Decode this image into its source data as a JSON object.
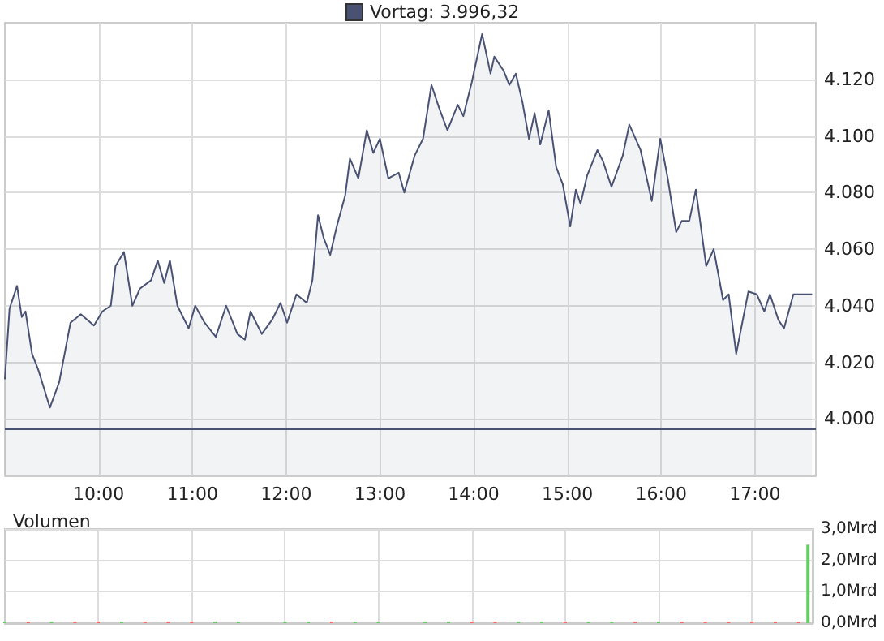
{
  "chart_data": [
    {
      "type": "area",
      "x": [
        9.0,
        9.05,
        9.13,
        9.18,
        9.22,
        9.29,
        9.36,
        9.48,
        9.58,
        9.7,
        9.81,
        9.95,
        10.04,
        10.13,
        10.18,
        10.27,
        10.36,
        10.44,
        10.56,
        10.63,
        10.7,
        10.76,
        10.84,
        10.96,
        11.03,
        11.13,
        11.25,
        11.36,
        11.48,
        11.56,
        11.62,
        11.74,
        11.85,
        11.94,
        12.01,
        12.11,
        12.22,
        12.28,
        12.34,
        12.4,
        12.47,
        12.54,
        12.63,
        12.68,
        12.77,
        12.86,
        12.93,
        13.0,
        13.09,
        13.2,
        13.26,
        13.37,
        13.46,
        13.55,
        13.63,
        13.72,
        13.83,
        13.89,
        13.98,
        14.09,
        14.18,
        14.22,
        14.32,
        14.38,
        14.45,
        14.52,
        14.59,
        14.65,
        14.71,
        14.8,
        14.88,
        14.95,
        15.03,
        15.09,
        15.14,
        15.21,
        15.32,
        15.38,
        15.47,
        15.59,
        15.66,
        15.78,
        15.9,
        15.99,
        16.07,
        16.16,
        16.22,
        16.3,
        16.37,
        16.48,
        16.56,
        16.66,
        16.72,
        16.8,
        16.93,
        17.02,
        17.1,
        17.16,
        17.25,
        17.31,
        17.41,
        17.61
      ],
      "series": [
        {
          "color": "#4a5274",
          "values": [
            4014,
            4039,
            4047,
            4036,
            4038,
            4023,
            4017,
            4004,
            4013,
            4034,
            4037,
            4033,
            4038,
            4040,
            4054,
            4059,
            4040,
            4046,
            4049,
            4056,
            4048,
            4056,
            4040,
            4032,
            4040,
            4034,
            4029,
            4040,
            4030,
            4028,
            4038,
            4030,
            4035,
            4041,
            4034,
            4044,
            4041,
            4049,
            4072,
            4064,
            4058,
            4068,
            4079,
            4092,
            4085,
            4102,
            4094,
            4099,
            4085,
            4087,
            4080,
            4093,
            4099,
            4118,
            4110,
            4102,
            4111,
            4107,
            4119,
            4136,
            4122,
            4128,
            4123,
            4118,
            4122,
            4112,
            4099,
            4108,
            4097,
            4109,
            4089,
            4083,
            4068,
            4081,
            4076,
            4086,
            4095,
            4091,
            4082,
            4093,
            4104,
            4095,
            4077,
            4099,
            4085,
            4066,
            4070,
            4070,
            4081,
            4054,
            4060,
            4042,
            4044,
            4023,
            4045,
            4044,
            4038,
            4044,
            4035,
            4032,
            4044,
            4044
          ]
        }
      ],
      "xlim": [
        9,
        17.65
      ],
      "xticks": [
        {
          "value": 10,
          "label": "10:00"
        },
        {
          "value": 11,
          "label": "11:00"
        },
        {
          "value": 12,
          "label": "12:00"
        },
        {
          "value": 13,
          "label": "13:00"
        },
        {
          "value": 14,
          "label": "14:00"
        },
        {
          "value": 15,
          "label": "15:00"
        },
        {
          "value": 16,
          "label": "16:00"
        },
        {
          "value": 17,
          "label": "17:00"
        }
      ],
      "ylim": [
        3980,
        4140
      ],
      "yticks": [
        {
          "value": 4000,
          "label": "4.000"
        },
        {
          "value": 4020,
          "label": "4.020"
        },
        {
          "value": 4040,
          "label": "4.040"
        },
        {
          "value": 4060,
          "label": "4.060"
        },
        {
          "value": 4080,
          "label": "4.080"
        },
        {
          "value": 4100,
          "label": "4.100"
        },
        {
          "value": 4120,
          "label": "4.120"
        }
      ],
      "ref_lines": [
        {
          "axis": "y",
          "value": 3996.32,
          "label": "Vortag: 3.996,32",
          "color": "#4a5274"
        }
      ],
      "grid": true
    },
    {
      "type": "bar",
      "title": "Volumen",
      "x": [
        9.0,
        9.25,
        9.5,
        9.75,
        10.0,
        10.25,
        10.5,
        10.75,
        11.0,
        11.25,
        11.5,
        12.0,
        12.25,
        12.5,
        12.75,
        13.0,
        13.5,
        13.75,
        14.0,
        14.25,
        14.5,
        14.75,
        15.0,
        15.25,
        15.5,
        15.75,
        16.0,
        16.25,
        16.5,
        16.75,
        17.0,
        17.25,
        17.5,
        17.6
      ],
      "values": [
        0.05,
        0.05,
        0.05,
        0.05,
        0.05,
        0.05,
        0.05,
        0.05,
        0.05,
        0.05,
        0.05,
        0.05,
        0.05,
        0.05,
        0.05,
        0.05,
        0.05,
        0.05,
        0.05,
        0.05,
        0.05,
        0.05,
        0.05,
        0.05,
        0.05,
        0.05,
        0.05,
        0.05,
        0.05,
        0.05,
        0.05,
        0.05,
        0.05,
        2.5
      ],
      "colors": [
        "#66cc66",
        "#ff6666",
        "#66cc66",
        "#ff6666",
        "#ff6666",
        "#66cc66",
        "#ff6666",
        "#ff6666",
        "#ff6666",
        "#66cc66",
        "#66cc66",
        "#66cc66",
        "#66cc66",
        "#ff6666",
        "#66cc66",
        "#66cc66",
        "#66cc66",
        "#66cc66",
        "#ff6666",
        "#ff6666",
        "#66cc66",
        "#66cc66",
        "#ff6666",
        "#66cc66",
        "#66cc66",
        "#ff6666",
        "#66cc66",
        "#ff6666",
        "#ff6666",
        "#ff6666",
        "#ff6666",
        "#ff6666",
        "#ff6666",
        "#66cc66"
      ],
      "xlim": [
        9,
        17.65
      ],
      "xticks": [
        {
          "value": 10,
          "label": null
        },
        {
          "value": 11,
          "label": null
        },
        {
          "value": 12,
          "label": null
        },
        {
          "value": 13,
          "label": null
        },
        {
          "value": 14,
          "label": null
        },
        {
          "value": 15,
          "label": null
        },
        {
          "value": 16,
          "label": null
        },
        {
          "value": 17,
          "label": null
        }
      ],
      "ylim": [
        0,
        3
      ],
      "yticks": [
        {
          "value": 0,
          "label": "0,0Mrd"
        },
        {
          "value": 1,
          "label": "1,0Mrd"
        },
        {
          "value": 2,
          "label": "2,0Mrd"
        },
        {
          "value": 3,
          "label": "3,0Mrd"
        }
      ],
      "tick_labels": "y",
      "grid": true
    }
  ]
}
